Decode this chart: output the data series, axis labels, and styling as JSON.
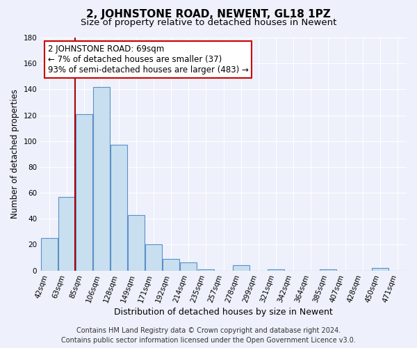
{
  "title": "2, JOHNSTONE ROAD, NEWENT, GL18 1PZ",
  "subtitle": "Size of property relative to detached houses in Newent",
  "xlabel": "Distribution of detached houses by size in Newent",
  "ylabel": "Number of detached properties",
  "bar_labels": [
    "42sqm",
    "63sqm",
    "85sqm",
    "106sqm",
    "128sqm",
    "149sqm",
    "171sqm",
    "192sqm",
    "214sqm",
    "235sqm",
    "257sqm",
    "278sqm",
    "299sqm",
    "321sqm",
    "342sqm",
    "364sqm",
    "385sqm",
    "407sqm",
    "428sqm",
    "450sqm",
    "471sqm"
  ],
  "bar_values": [
    25,
    57,
    121,
    142,
    97,
    43,
    20,
    9,
    6,
    1,
    0,
    4,
    0,
    1,
    0,
    0,
    1,
    0,
    0,
    2,
    0
  ],
  "bar_color": "#c8dff0",
  "bar_edge_color": "#5b8fc9",
  "vline_x_index": 1.5,
  "vline_color": "#aa0000",
  "annotation_line1": "2 JOHNSTONE ROAD: 69sqm",
  "annotation_line2": "← 7% of detached houses are smaller (37)",
  "annotation_line3": "93% of semi-detached houses are larger (483) →",
  "annotation_box_color": "#ffffff",
  "annotation_box_edge": "#cc0000",
  "ylim": [
    0,
    180
  ],
  "yticks": [
    0,
    20,
    40,
    60,
    80,
    100,
    120,
    140,
    160,
    180
  ],
  "footer_line1": "Contains HM Land Registry data © Crown copyright and database right 2024.",
  "footer_line2": "Contains public sector information licensed under the Open Government Licence v3.0.",
  "bg_color": "#eef1fb",
  "plot_bg_color": "#eef1fb",
  "grid_color": "#ffffff",
  "title_fontsize": 11,
  "subtitle_fontsize": 9.5,
  "xlabel_fontsize": 9,
  "ylabel_fontsize": 8.5,
  "tick_fontsize": 7.5,
  "annotation_fontsize": 8.5,
  "footer_fontsize": 7
}
